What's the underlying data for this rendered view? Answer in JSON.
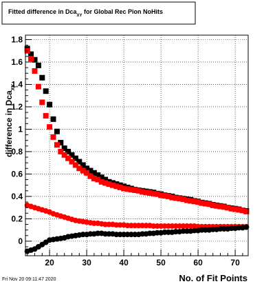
{
  "chart_data": {
    "type": "scatter",
    "title_main": "Fitted difference in Dca",
    "title_sub": "XY",
    "title_tail": " for Global Rec Pion NoHits",
    "xlabel": "No. of Fit Points",
    "ylabel_main": "difference in Dca",
    "ylabel_sub": "XY",
    "xlim": [
      13.5,
      73.5
    ],
    "ylim": [
      -0.13,
      1.84
    ],
    "xticks": [
      20,
      30,
      40,
      50,
      60,
      70
    ],
    "yticks": [
      0,
      0.2,
      0.4,
      0.6,
      0.8,
      1,
      1.2,
      1.4,
      1.6,
      1.8
    ],
    "ytick_labels": [
      "0",
      "0.2",
      "0.4",
      "0.6",
      "0.8",
      "1",
      "1.2",
      "1.4",
      "1.6",
      "1.8"
    ],
    "grid": true,
    "timestamp": "Fri Nov 20 09:11:47 2020",
    "series": [
      {
        "marker": "square",
        "color": "#000000",
        "x": [
          14,
          15,
          16,
          17,
          18,
          19,
          20,
          21,
          22,
          23,
          24,
          25,
          26,
          27,
          28,
          29,
          30,
          31,
          32,
          33,
          34,
          35,
          36,
          37,
          38,
          39,
          40,
          41,
          42,
          43,
          44,
          45,
          46,
          47,
          48,
          49,
          50,
          51,
          52,
          53,
          54,
          55,
          56,
          57,
          58,
          59,
          60,
          61,
          62,
          63,
          64,
          65,
          66,
          67,
          68,
          69,
          70,
          71,
          72,
          73
        ],
        "y": [
          1.72,
          1.67,
          1.62,
          1.57,
          1.46,
          1.34,
          1.22,
          1.09,
          0.98,
          0.88,
          0.83,
          0.8,
          0.77,
          0.74,
          0.71,
          0.68,
          0.65,
          0.63,
          0.61,
          0.59,
          0.57,
          0.55,
          0.53,
          0.52,
          0.51,
          0.5,
          0.49,
          0.48,
          0.47,
          0.46,
          0.455,
          0.45,
          0.445,
          0.44,
          0.435,
          0.425,
          0.42,
          0.41,
          0.405,
          0.4,
          0.39,
          0.385,
          0.38,
          0.375,
          0.37,
          0.36,
          0.355,
          0.345,
          0.34,
          0.335,
          0.325,
          0.32,
          0.315,
          0.31,
          0.3,
          0.295,
          0.29,
          0.285,
          0.275,
          0.27
        ]
      },
      {
        "marker": "square",
        "color": "#ff0000",
        "x": [
          14,
          15,
          16,
          17,
          18,
          19,
          20,
          21,
          22,
          23,
          24,
          25,
          26,
          27,
          28,
          29,
          30,
          31,
          32,
          33,
          34,
          35,
          36,
          37,
          38,
          39,
          40,
          41,
          42,
          43,
          44,
          45,
          46,
          47,
          48,
          49,
          50,
          51,
          52,
          53,
          54,
          55,
          56,
          57,
          58,
          59,
          60,
          61,
          62,
          63,
          64,
          65,
          66,
          67,
          68,
          69,
          70,
          71,
          72,
          73
        ],
        "y": [
          1.7,
          1.63,
          1.52,
          1.38,
          1.24,
          1.12,
          1.02,
          0.93,
          0.86,
          0.8,
          0.77,
          0.74,
          0.71,
          0.68,
          0.65,
          0.63,
          0.61,
          0.58,
          0.56,
          0.55,
          0.53,
          0.52,
          0.51,
          0.5,
          0.49,
          0.48,
          0.47,
          0.465,
          0.46,
          0.455,
          0.45,
          0.44,
          0.435,
          0.43,
          0.425,
          0.42,
          0.41,
          0.405,
          0.4,
          0.39,
          0.385,
          0.38,
          0.375,
          0.365,
          0.36,
          0.355,
          0.35,
          0.34,
          0.335,
          0.33,
          0.32,
          0.315,
          0.31,
          0.305,
          0.3,
          0.29,
          0.285,
          0.28,
          0.275,
          0.265
        ]
      },
      {
        "marker": "circle",
        "color": "#ff0000",
        "x": [
          14,
          15,
          16,
          17,
          18,
          19,
          20,
          21,
          22,
          23,
          24,
          25,
          26,
          27,
          28,
          29,
          30,
          31,
          32,
          33,
          34,
          35,
          36,
          37,
          38,
          39,
          40,
          41,
          42,
          43,
          44,
          45,
          46,
          47,
          48,
          49,
          50,
          51,
          52,
          53,
          54,
          55,
          56,
          57,
          58,
          59,
          60,
          61,
          62,
          63,
          64,
          65,
          66,
          67,
          68,
          69,
          70,
          71,
          72,
          73
        ],
        "y": [
          0.32,
          0.31,
          0.3,
          0.29,
          0.28,
          0.27,
          0.26,
          0.245,
          0.235,
          0.225,
          0.215,
          0.205,
          0.195,
          0.185,
          0.18,
          0.175,
          0.17,
          0.165,
          0.16,
          0.16,
          0.155,
          0.15,
          0.15,
          0.15,
          0.145,
          0.145,
          0.145,
          0.14,
          0.14,
          0.14,
          0.14,
          0.14,
          0.14,
          0.14,
          0.135,
          0.135,
          0.135,
          0.135,
          0.135,
          0.135,
          0.135,
          0.135,
          0.135,
          0.135,
          0.135,
          0.135,
          0.13,
          0.13,
          0.13,
          0.13,
          0.13,
          0.13,
          0.13,
          0.13,
          0.13,
          0.13,
          0.13,
          0.13,
          0.13,
          0.13
        ]
      },
      {
        "marker": "circle",
        "color": "#000000",
        "x": [
          14,
          15,
          16,
          17,
          18,
          19,
          20,
          21,
          22,
          23,
          24,
          25,
          26,
          27,
          28,
          29,
          30,
          31,
          32,
          33,
          34,
          35,
          36,
          37,
          38,
          39,
          40,
          41,
          42,
          43,
          44,
          45,
          46,
          47,
          48,
          49,
          50,
          51,
          52,
          53,
          54,
          55,
          56,
          57,
          58,
          59,
          60,
          61,
          62,
          63,
          64,
          65,
          66,
          67,
          68,
          69,
          70,
          71,
          72,
          73
        ],
        "y": [
          -0.09,
          -0.08,
          -0.07,
          -0.05,
          -0.03,
          -0.01,
          0.01,
          0.015,
          0.02,
          0.025,
          0.03,
          0.04,
          0.045,
          0.05,
          0.055,
          0.06,
          0.06,
          0.065,
          0.065,
          0.07,
          0.07,
          0.065,
          0.065,
          0.065,
          0.06,
          0.06,
          0.06,
          0.06,
          0.06,
          0.06,
          0.06,
          0.065,
          0.065,
          0.07,
          0.07,
          0.075,
          0.075,
          0.08,
          0.08,
          0.08,
          0.085,
          0.085,
          0.09,
          0.09,
          0.09,
          0.095,
          0.095,
          0.1,
          0.1,
          0.1,
          0.105,
          0.105,
          0.11,
          0.11,
          0.11,
          0.115,
          0.115,
          0.12,
          0.12,
          0.125
        ]
      }
    ]
  }
}
